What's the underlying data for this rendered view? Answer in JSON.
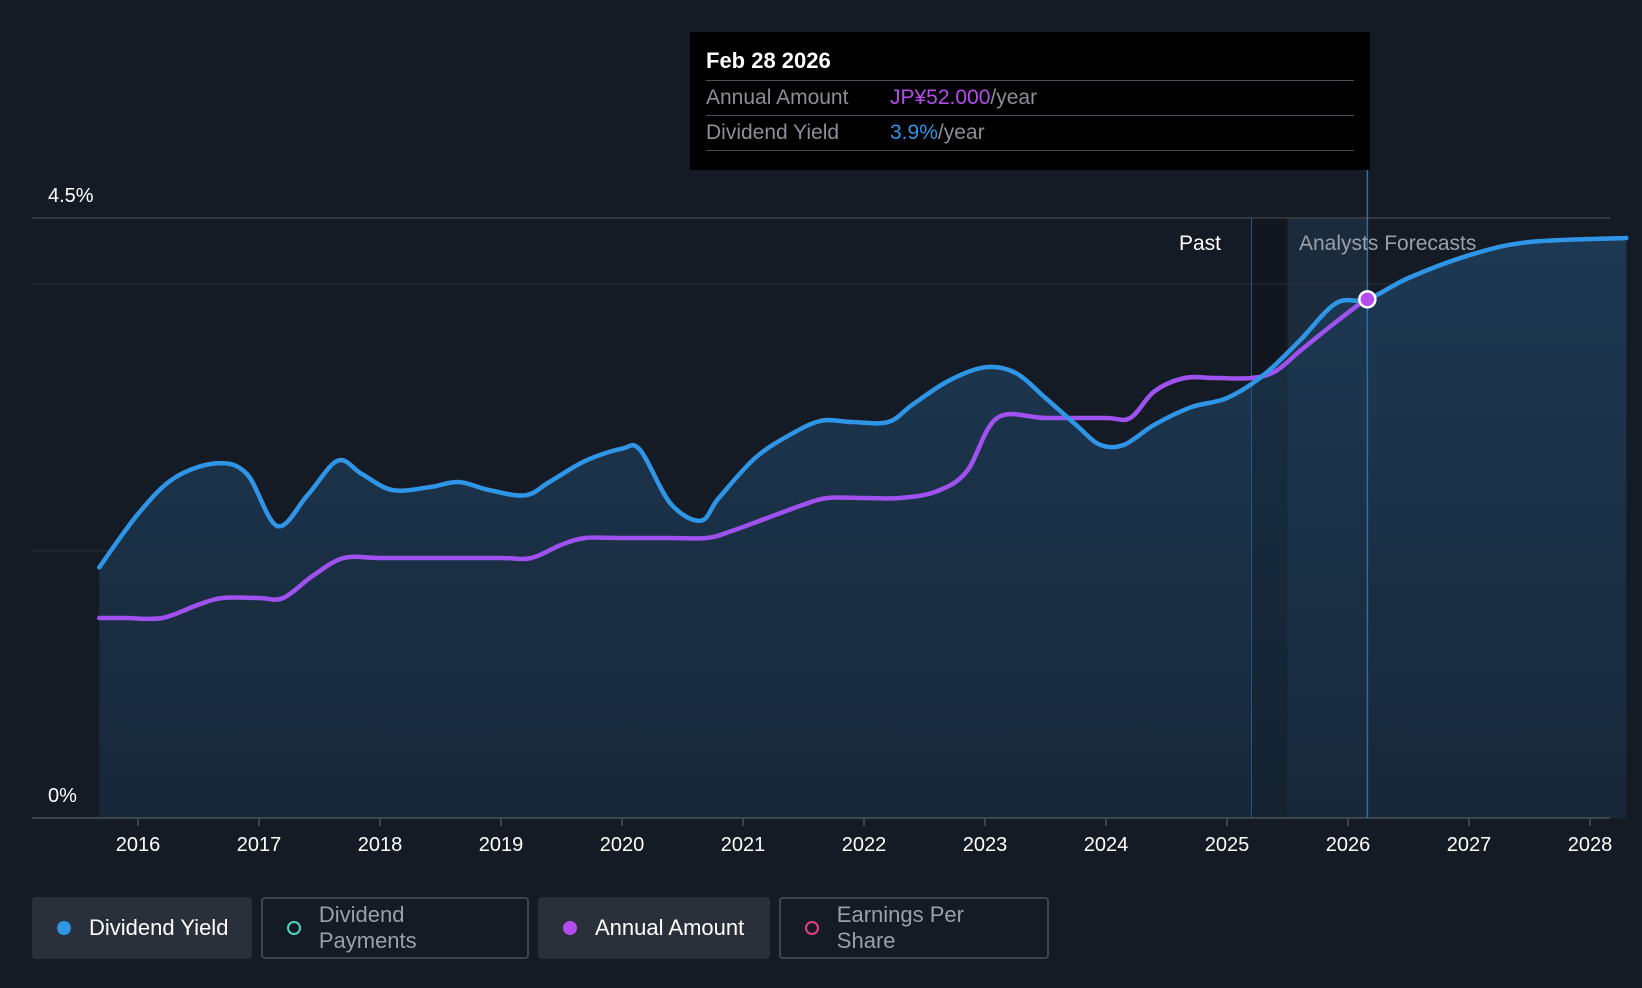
{
  "tooltip": {
    "date": "Feb 28 2026",
    "rows": [
      {
        "label": "Annual Amount",
        "value": "JP¥52.000",
        "unit": "/year"
      },
      {
        "label": "Dividend Yield",
        "value": "3.9%",
        "unit": "/year"
      }
    ]
  },
  "regions": {
    "past_label": "Past",
    "forecast_label": "Analysts Forecasts"
  },
  "legend": [
    {
      "label": "Dividend Yield",
      "color": "#2f95e6",
      "active": true
    },
    {
      "label": "Dividend Payments",
      "color": "#4fd1c5",
      "active": false
    },
    {
      "label": "Annual Amount",
      "color": "#b44cf0",
      "active": true
    },
    {
      "label": "Earnings Per Share",
      "color": "#e0417f",
      "active": false
    }
  ],
  "colors": {
    "background": "#151b24",
    "dividend_yield": "#2f95e6",
    "annual_amount": "#b44cf0",
    "gridline": "#3a414b"
  },
  "chart_data": {
    "type": "line",
    "ylim": [
      0,
      4.5
    ],
    "y_ticks": [
      "4.5%",
      "0%"
    ],
    "x_ticks": [
      "2016",
      "2017",
      "2018",
      "2019",
      "2020",
      "2021",
      "2022",
      "2023",
      "2024",
      "2025",
      "2026",
      "2027",
      "2028"
    ],
    "xlim": [
      2015.5,
      2028.3
    ],
    "past_forecast_boundary": 2025.5,
    "selected_x": 2026.16,
    "series": [
      {
        "name": "Dividend Yield",
        "x": [
          2015.68,
          2016.0,
          2016.3,
          2016.65,
          2016.9,
          2017.15,
          2017.4,
          2017.65,
          2017.85,
          2018.1,
          2018.4,
          2018.65,
          2018.9,
          2019.2,
          2019.4,
          2019.7,
          2020.0,
          2020.15,
          2020.4,
          2020.65,
          2020.8,
          2021.1,
          2021.4,
          2021.65,
          2021.9,
          2022.2,
          2022.4,
          2022.7,
          2023.0,
          2023.25,
          2023.5,
          2023.75,
          2023.95,
          2024.15,
          2024.4,
          2024.7,
          2025.0,
          2025.3,
          2025.6,
          2025.9,
          2026.16,
          2026.5,
          2027.0,
          2027.5,
          2028.3
        ],
        "values": [
          1.88,
          2.28,
          2.55,
          2.66,
          2.58,
          2.19,
          2.42,
          2.68,
          2.58,
          2.46,
          2.48,
          2.52,
          2.46,
          2.42,
          2.52,
          2.68,
          2.77,
          2.76,
          2.36,
          2.23,
          2.4,
          2.7,
          2.88,
          2.98,
          2.97,
          2.97,
          3.1,
          3.28,
          3.38,
          3.34,
          3.15,
          2.95,
          2.8,
          2.8,
          2.95,
          3.08,
          3.15,
          3.32,
          3.58,
          3.86,
          3.89,
          4.05,
          4.22,
          4.32,
          4.35
        ]
      },
      {
        "name": "Annual Amount",
        "x": [
          2015.68,
          2015.9,
          2016.2,
          2016.5,
          2016.7,
          2017.0,
          2017.2,
          2017.45,
          2017.7,
          2018.0,
          2018.5,
          2019.0,
          2019.25,
          2019.5,
          2019.7,
          2020.0,
          2020.4,
          2020.7,
          2020.9,
          2021.2,
          2021.5,
          2021.7,
          2022.0,
          2022.3,
          2022.6,
          2022.85,
          2023.1,
          2023.5,
          2024.0,
          2024.2,
          2024.4,
          2024.65,
          2024.9,
          2025.2,
          2025.4,
          2025.6,
          2025.9,
          2026.16
        ],
        "values": [
          1.5,
          1.5,
          1.5,
          1.6,
          1.65,
          1.65,
          1.65,
          1.82,
          1.95,
          1.95,
          1.95,
          1.95,
          1.95,
          2.05,
          2.1,
          2.1,
          2.1,
          2.1,
          2.15,
          2.25,
          2.35,
          2.4,
          2.4,
          2.4,
          2.45,
          2.6,
          3.0,
          3.0,
          3.0,
          3.0,
          3.2,
          3.3,
          3.3,
          3.3,
          3.35,
          3.5,
          3.72,
          3.9
        ]
      }
    ]
  }
}
